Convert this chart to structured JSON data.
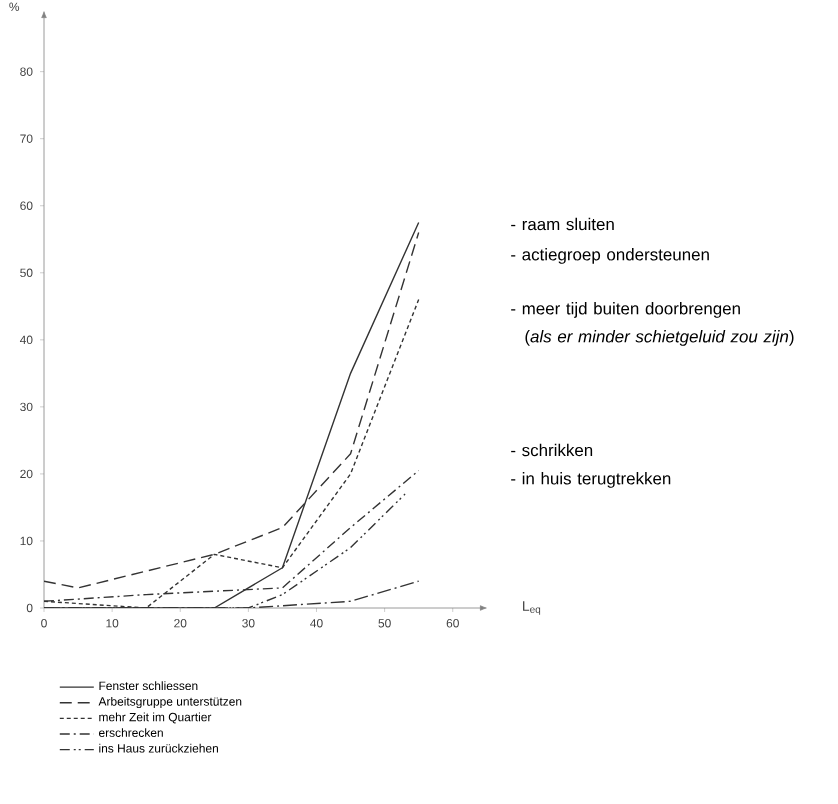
{
  "chart_data": {
    "type": "line",
    "xlabel": "L$_{eq}$",
    "ylabel": "%",
    "xlim": [
      0,
      64
    ],
    "ylim": [
      0,
      88
    ],
    "xticks": [
      0,
      10,
      20,
      30,
      40,
      50,
      60
    ],
    "yticks": [
      0,
      10,
      20,
      30,
      40,
      50,
      60,
      70,
      80
    ],
    "grid": false,
    "legend": "bottom",
    "marker": "none",
    "series": [
      {
        "name": "Fenster schliessen",
        "color": "#333333",
        "line_style": "solid",
        "x": [
          0,
          25,
          35,
          45,
          55
        ],
        "values": [
          0,
          0,
          6,
          35,
          57.5
        ]
      },
      {
        "name": "Arbeitsgruppe unterstützen",
        "color": "#333333",
        "line_style": "longdashed",
        "x": [
          0,
          5,
          15,
          25,
          35,
          45,
          55
        ],
        "values": [
          4,
          3,
          5.5,
          8,
          12,
          23,
          56
        ]
      },
      {
        "name": "mehr Zeit im Quartier",
        "color": "#333333",
        "line_style": "dashed",
        "x": [
          0,
          15,
          25,
          35,
          45,
          55
        ],
        "values": [
          1,
          0,
          8,
          6,
          20,
          46
        ]
      },
      {
        "name": "erschrecken",
        "color": "#333333",
        "line_style": "dashdot",
        "x": [
          0,
          15,
          25,
          35,
          45,
          55
        ],
        "values": [
          1,
          2,
          2.5,
          3,
          12,
          20.5
        ]
      },
      {
        "name": "ins Haus zurückziehen",
        "color": "#333333",
        "line_style": "dashdotdot",
        "x": [
          0,
          30,
          35,
          45,
          53
        ],
        "values": [
          0,
          0,
          2,
          9,
          17
        ]
      },
      {
        "color": "#333333",
        "line_style": "longdashdot",
        "x": [
          0,
          30,
          45,
          55
        ],
        "values": [
          0,
          0,
          1,
          4
        ]
      }
    ],
    "annotations": [
      "- raam sluiten",
      "- actiegroep ondersteunen",
      "- meer tijd buiten doorbrengen",
      "(*als er minder schietgeluid zou zijn*)",
      "- schrikken",
      "- in huis terugtrekken"
    ]
  }
}
